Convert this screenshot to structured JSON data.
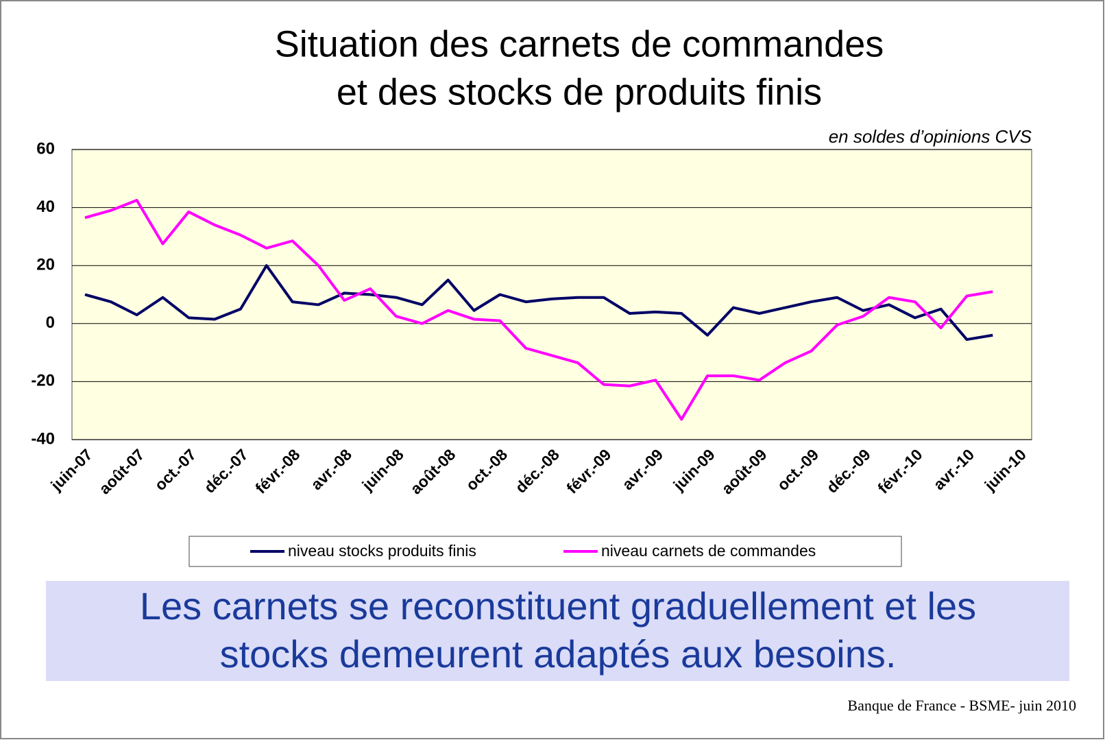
{
  "chart_data": {
    "type": "line",
    "title": [
      "Situation des carnets de commandes",
      "et des stocks de produits finis"
    ],
    "subtitle": "en soldes d’opinions CVS",
    "categories": [
      "juin-07",
      null,
      "août-07",
      null,
      "oct.-07",
      null,
      "déc.-07",
      null,
      "févr.-08",
      null,
      "avr.-08",
      null,
      "juin-08",
      null,
      "août-08",
      null,
      "oct.-08",
      null,
      "déc.-08",
      null,
      "févr.-09",
      null,
      "avr.-09",
      null,
      "juin-09",
      null,
      "août-09",
      null,
      "oct.-09",
      null,
      "déc.-09",
      null,
      "févr.-10",
      null,
      "avr.-10",
      null,
      "juin-10"
    ],
    "series": [
      {
        "name": "niveau stocks produits finis",
        "color": "#000066",
        "values": [
          10,
          7.5,
          3,
          9,
          2,
          1.5,
          5,
          20,
          7.5,
          6.5,
          10.5,
          10,
          9,
          6.5,
          15,
          4.5,
          10,
          7.5,
          8.5,
          9,
          9,
          3.5,
          4,
          3.5,
          -4,
          5.5,
          3.5,
          5.5,
          7.5,
          9,
          4.5,
          6.5,
          2,
          5,
          -5.5,
          -4,
          null
        ]
      },
      {
        "name": "niveau carnets de commandes",
        "color": "#ff00ff",
        "values": [
          36.5,
          39,
          42.5,
          27.5,
          38.5,
          34,
          30.5,
          26,
          28.5,
          20,
          8,
          12,
          2.5,
          0,
          4.5,
          1.5,
          1,
          -8.5,
          -11,
          -13.5,
          -21,
          -21.5,
          -19.5,
          -33,
          -18,
          -18,
          -19.5,
          -13.5,
          -9.5,
          -0.5,
          2.5,
          9,
          7.5,
          -1.5,
          9.5,
          11,
          null
        ]
      }
    ],
    "ylim": [
      -40,
      60
    ],
    "yticks": [
      60,
      40,
      20,
      0,
      -20,
      -40
    ],
    "grid": true,
    "annotation": [
      "Les carnets se reconstituent graduellement et les",
      "stocks demeurent adaptés aux besoins."
    ],
    "footer": "Banque de France - BSME- juin 2010"
  }
}
